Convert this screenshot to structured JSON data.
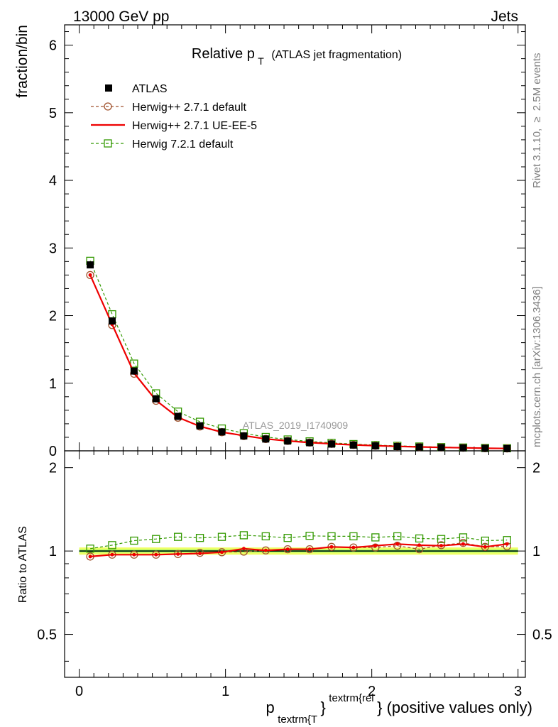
{
  "header": {
    "left": "13000 GeV pp",
    "right": "Jets"
  },
  "side_labels": {
    "rivet_a": "Rivet 3.1.10,",
    "rivet_ge": "≥",
    "rivet_b": "2.5M events",
    "mcplots": "mcplots.cern.ch [arXiv:1306.3436]"
  },
  "watermark": "ATLAS_2019_I1740909",
  "chart_data": {
    "type": "line",
    "title": {
      "main": "Relative p",
      "main_sub": "T",
      "small": "(ATLAS jet fragmentation)"
    },
    "xlabel": {
      "main": "p",
      "sub": "textrm{T",
      "sup": "textrm{rel",
      "close": "}",
      "rest": "} (positive values only)"
    },
    "ylabel": "fraction/bin",
    "ratio_ylabel": "Ratio to ATLAS",
    "xlim": [
      -0.1,
      3.05
    ],
    "ylim": [
      0,
      6.3
    ],
    "ratio_ylim": [
      0.35,
      2.3
    ],
    "xticks": [
      "0",
      "1",
      "2",
      "3"
    ],
    "xtick_values": [
      0,
      1,
      2,
      3
    ],
    "yticks": [
      "0",
      "1",
      "2",
      "3",
      "4",
      "5",
      "6"
    ],
    "ytick_values": [
      0,
      1,
      2,
      3,
      4,
      5,
      6
    ],
    "ratio_yticks": [
      "0.5",
      "1",
      "2"
    ],
    "ratio_ytick_values": [
      0.5,
      1,
      2
    ],
    "log_ratio": true,
    "legend_position": "top-left",
    "x": [
      0.075,
      0.225,
      0.375,
      0.525,
      0.675,
      0.825,
      0.975,
      1.125,
      1.275,
      1.425,
      1.575,
      1.725,
      1.875,
      2.025,
      2.175,
      2.325,
      2.475,
      2.625,
      2.775,
      2.925
    ],
    "series": [
      {
        "name": "ATLAS",
        "style": "data",
        "color": "#000000",
        "values": [
          2.75,
          1.92,
          1.18,
          0.77,
          0.51,
          0.37,
          0.28,
          0.22,
          0.175,
          0.145,
          0.12,
          0.1,
          0.085,
          0.073,
          0.063,
          0.055,
          0.048,
          0.042,
          0.037,
          0.033
        ],
        "ratio": [
          1.0,
          1.0,
          1.0,
          1.0,
          1.0,
          1.0,
          1.0,
          1.0,
          1.0,
          1.0,
          1.0,
          1.0,
          1.0,
          1.0,
          1.0,
          1.0,
          1.0,
          1.0,
          1.0,
          1.0
        ]
      },
      {
        "name": "Herwig++ 2.7.1 default",
        "style": "dashed-circle",
        "color": "#a0522d",
        "values": [
          2.6,
          1.86,
          1.14,
          0.74,
          0.49,
          0.36,
          0.275,
          0.218,
          0.175,
          0.147,
          0.122,
          0.103,
          0.088,
          0.075,
          0.066,
          0.056,
          0.05,
          0.045,
          0.038,
          0.035
        ],
        "ratio": [
          0.955,
          0.97,
          0.97,
          0.97,
          0.975,
          0.985,
          0.99,
          0.995,
          1.005,
          1.015,
          1.015,
          1.035,
          1.03,
          1.03,
          1.045,
          1.015,
          1.05,
          1.07,
          1.035,
          1.04
        ]
      },
      {
        "name": "Herwig++ 2.7.1 UE-EE-5",
        "style": "solid",
        "color": "#ee0000",
        "values": [
          2.6,
          1.87,
          1.15,
          0.745,
          0.495,
          0.362,
          0.276,
          0.225,
          0.176,
          0.147,
          0.122,
          0.104,
          0.088,
          0.076,
          0.066,
          0.058,
          0.05,
          0.045,
          0.038,
          0.035
        ],
        "ratio": [
          0.955,
          0.97,
          0.97,
          0.97,
          0.975,
          0.98,
          0.99,
          1.02,
          1.005,
          1.015,
          1.015,
          1.035,
          1.03,
          1.045,
          1.06,
          1.05,
          1.045,
          1.06,
          1.035,
          1.06
        ]
      },
      {
        "name": "Herwig 7.2.1 default",
        "style": "dashed-square",
        "color": "#339900",
        "values": [
          2.81,
          2.02,
          1.29,
          0.85,
          0.58,
          0.43,
          0.33,
          0.26,
          0.205,
          0.168,
          0.14,
          0.118,
          0.1,
          0.085,
          0.074,
          0.064,
          0.055,
          0.049,
          0.042,
          0.038
        ],
        "ratio": [
          1.02,
          1.05,
          1.09,
          1.105,
          1.125,
          1.115,
          1.125,
          1.14,
          1.13,
          1.115,
          1.135,
          1.13,
          1.13,
          1.12,
          1.13,
          1.11,
          1.105,
          1.12,
          1.09,
          1.095
        ]
      }
    ],
    "uncertainty_band": {
      "inner": 0.01,
      "outer": 0.03,
      "inner_color": "#66ee66",
      "outer_color": "#eeff66"
    }
  }
}
